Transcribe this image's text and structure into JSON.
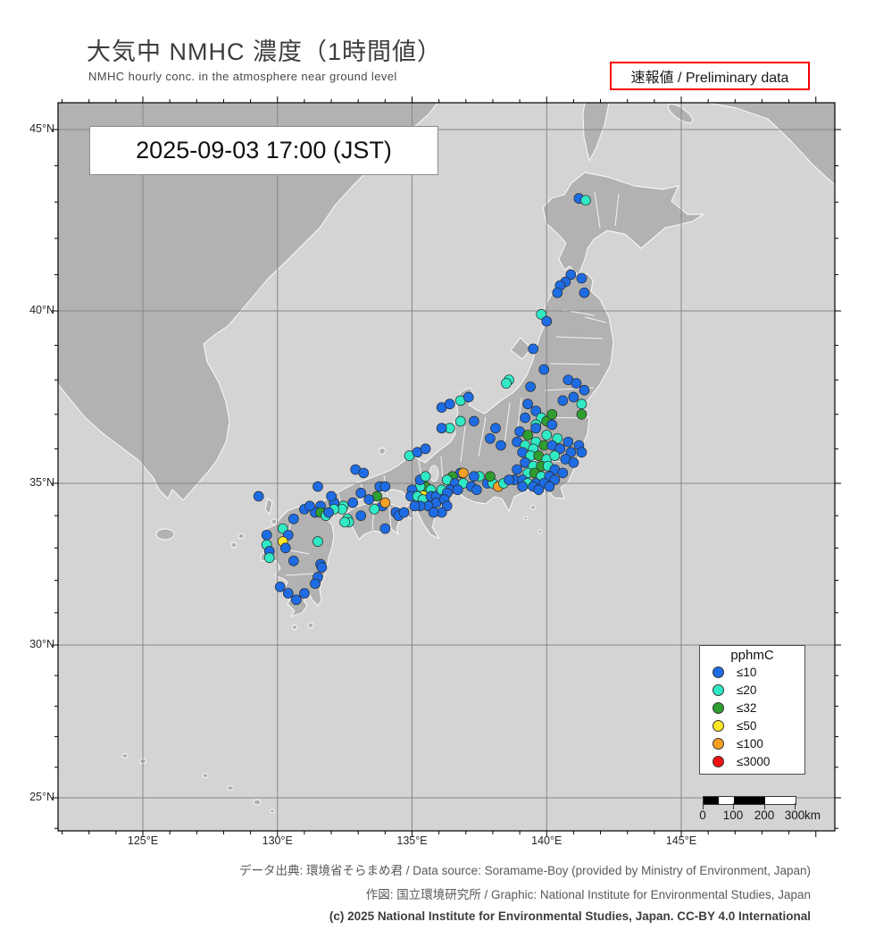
{
  "header": {
    "title": "大気中 NMHC 濃度（1時間値）",
    "subtitle": "NMHC hourly conc. in the atmosphere near ground level",
    "preliminary": "速報値 / Preliminary data"
  },
  "map": {
    "timestamp": "2025-09-03  17:00 (JST)",
    "axes": {
      "x": [
        {
          "label": "125°E",
          "lon": 125
        },
        {
          "label": "130°E",
          "lon": 130
        },
        {
          "label": "135°E",
          "lon": 135
        },
        {
          "label": "140°E",
          "lon": 140
        },
        {
          "label": "145°E",
          "lon": 145
        }
      ],
      "y": [
        {
          "label": "45°N",
          "lat": 45
        },
        {
          "label": "40°N",
          "lat": 40
        },
        {
          "label": "35°N",
          "lat": 35
        },
        {
          "label": "30°N",
          "lat": 30
        },
        {
          "label": "25°N",
          "lat": 25
        }
      ]
    },
    "legend": {
      "title": "pphmC",
      "items": [
        {
          "label": "≤10",
          "color": "#1e6ce4"
        },
        {
          "label": "≤20",
          "color": "#30e9c5"
        },
        {
          "label": "≤32",
          "color": "#2f9e30"
        },
        {
          "label": "≤50",
          "color": "#ffe826"
        },
        {
          "label": "≤100",
          "color": "#f5a023"
        },
        {
          "label": "≤3000",
          "color": "#f01212"
        }
      ]
    },
    "scalebar": {
      "ticks": [
        "0",
        "100",
        "200",
        "300"
      ],
      "unit": "km"
    },
    "colors": {
      "sea": "#d4d4d4",
      "land": "#b2b2b2",
      "grid": "#878787"
    },
    "stations": [
      [
        141.2,
        43.1,
        0
      ],
      [
        141.45,
        43.05,
        1
      ],
      [
        140.9,
        41.0,
        0
      ],
      [
        141.3,
        40.9,
        0
      ],
      [
        140.7,
        40.8,
        0
      ],
      [
        140.5,
        40.7,
        0
      ],
      [
        140.4,
        40.5,
        0
      ],
      [
        141.4,
        40.5,
        0
      ],
      [
        139.8,
        39.9,
        1
      ],
      [
        140.0,
        39.7,
        0
      ],
      [
        139.5,
        38.9,
        0
      ],
      [
        139.9,
        38.3,
        0
      ],
      [
        140.8,
        38.0,
        0
      ],
      [
        141.1,
        37.9,
        0
      ],
      [
        141.4,
        37.7,
        0
      ],
      [
        141.0,
        37.5,
        0
      ],
      [
        140.6,
        37.4,
        0
      ],
      [
        141.3,
        37.3,
        1
      ],
      [
        139.4,
        37.8,
        0
      ],
      [
        138.6,
        38.0,
        1
      ],
      [
        139.3,
        37.3,
        0
      ],
      [
        139.6,
        37.1,
        0
      ],
      [
        139.8,
        36.9,
        1
      ],
      [
        140.0,
        36.8,
        2
      ],
      [
        140.2,
        36.7,
        0
      ],
      [
        139.6,
        36.7,
        1
      ],
      [
        139.2,
        36.9,
        0
      ],
      [
        138.5,
        37.9,
        1
      ],
      [
        141.3,
        37.0,
        2
      ],
      [
        139.0,
        36.5,
        0
      ],
      [
        139.6,
        36.6,
        0
      ],
      [
        140.0,
        36.4,
        1
      ],
      [
        140.4,
        36.3,
        1
      ],
      [
        140.8,
        36.2,
        0
      ],
      [
        141.2,
        36.1,
        0
      ],
      [
        139.6,
        36.2,
        1
      ],
      [
        139.3,
        36.4,
        2
      ],
      [
        138.9,
        36.2,
        0
      ],
      [
        139.2,
        36.1,
        1
      ],
      [
        139.5,
        36.0,
        1
      ],
      [
        139.9,
        36.1,
        2
      ],
      [
        140.2,
        36.1,
        0
      ],
      [
        140.5,
        36.0,
        0
      ],
      [
        140.9,
        35.9,
        0
      ],
      [
        141.3,
        35.9,
        0
      ],
      [
        139.1,
        35.9,
        0
      ],
      [
        139.4,
        35.8,
        1
      ],
      [
        139.7,
        35.8,
        2
      ],
      [
        140.0,
        35.7,
        1
      ],
      [
        140.3,
        35.8,
        1
      ],
      [
        140.7,
        35.7,
        0
      ],
      [
        141.0,
        35.6,
        0
      ],
      [
        139.2,
        35.6,
        0
      ],
      [
        139.5,
        35.5,
        1
      ],
      [
        139.8,
        35.5,
        2
      ],
      [
        140.05,
        35.5,
        1
      ],
      [
        140.3,
        35.4,
        0
      ],
      [
        140.6,
        35.3,
        0
      ],
      [
        138.9,
        35.4,
        0
      ],
      [
        139.3,
        35.3,
        1
      ],
      [
        139.55,
        35.3,
        2
      ],
      [
        139.8,
        35.2,
        1
      ],
      [
        140.1,
        35.2,
        0
      ],
      [
        140.3,
        35.1,
        0
      ],
      [
        138.8,
        35.1,
        0
      ],
      [
        139.1,
        35.1,
        0
      ],
      [
        139.3,
        35.0,
        1
      ],
      [
        139.6,
        35.0,
        0
      ],
      [
        139.9,
        35.0,
        0
      ],
      [
        140.1,
        34.9,
        0
      ],
      [
        139.5,
        34.9,
        0
      ],
      [
        139.1,
        34.9,
        0
      ],
      [
        139.7,
        34.8,
        0
      ],
      [
        140.2,
        37.0,
        2
      ],
      [
        136.1,
        37.2,
        0
      ],
      [
        136.4,
        37.3,
        0
      ],
      [
        136.8,
        37.4,
        1
      ],
      [
        137.1,
        37.5,
        0
      ],
      [
        136.8,
        36.8,
        1
      ],
      [
        136.4,
        36.6,
        1
      ],
      [
        136.1,
        36.6,
        0
      ],
      [
        137.3,
        36.8,
        0
      ],
      [
        138.1,
        36.6,
        0
      ],
      [
        137.9,
        36.3,
        0
      ],
      [
        138.3,
        36.1,
        0
      ],
      [
        136.8,
        35.3,
        0
      ],
      [
        136.9,
        35.3,
        4
      ],
      [
        136.5,
        35.2,
        2
      ],
      [
        136.3,
        35.1,
        1
      ],
      [
        136.6,
        35.0,
        0
      ],
      [
        136.9,
        35.0,
        1
      ],
      [
        137.2,
        34.9,
        0
      ],
      [
        137.4,
        34.8,
        0
      ],
      [
        137.8,
        35.0,
        0
      ],
      [
        138.0,
        35.0,
        1
      ],
      [
        138.2,
        34.9,
        4
      ],
      [
        138.4,
        35.0,
        1
      ],
      [
        138.6,
        35.1,
        0
      ],
      [
        137.9,
        35.2,
        2
      ],
      [
        137.5,
        35.2,
        1
      ],
      [
        137.3,
        35.2,
        0
      ],
      [
        136.4,
        34.8,
        0
      ],
      [
        136.7,
        34.8,
        0
      ],
      [
        135.4,
        34.7,
        3
      ],
      [
        135.5,
        34.9,
        2
      ],
      [
        135.7,
        34.8,
        1
      ],
      [
        135.3,
        34.9,
        1
      ],
      [
        135.0,
        34.8,
        0
      ],
      [
        134.95,
        34.6,
        0
      ],
      [
        135.2,
        34.6,
        1
      ],
      [
        135.4,
        34.5,
        1
      ],
      [
        135.7,
        34.6,
        0
      ],
      [
        135.9,
        34.6,
        0
      ],
      [
        135.9,
        34.4,
        0
      ],
      [
        135.6,
        34.3,
        0
      ],
      [
        135.3,
        34.3,
        0
      ],
      [
        135.1,
        34.3,
        0
      ],
      [
        136.1,
        34.8,
        1
      ],
      [
        136.3,
        34.7,
        0
      ],
      [
        136.2,
        34.5,
        0
      ],
      [
        136.3,
        34.3,
        0
      ],
      [
        136.1,
        34.1,
        0
      ],
      [
        135.8,
        34.1,
        0
      ],
      [
        135.3,
        35.1,
        0
      ],
      [
        135.5,
        35.2,
        1
      ],
      [
        134.9,
        35.8,
        1
      ],
      [
        135.2,
        35.9,
        0
      ],
      [
        135.5,
        36.0,
        0
      ],
      [
        133.8,
        34.9,
        0
      ],
      [
        134.0,
        34.9,
        0
      ],
      [
        133.7,
        34.6,
        2
      ],
      [
        133.9,
        34.3,
        0
      ],
      [
        134.0,
        34.4,
        4
      ],
      [
        134.4,
        34.1,
        0
      ],
      [
        133.4,
        34.5,
        0
      ],
      [
        133.1,
        34.7,
        0
      ],
      [
        132.8,
        34.4,
        0
      ],
      [
        132.45,
        34.3,
        1
      ],
      [
        132.4,
        34.2,
        1
      ],
      [
        132.1,
        34.4,
        0
      ],
      [
        132.0,
        34.6,
        0
      ],
      [
        131.6,
        34.3,
        0
      ],
      [
        132.9,
        35.4,
        0
      ],
      [
        133.2,
        35.3,
        0
      ],
      [
        131.5,
        34.9,
        0
      ],
      [
        131.4,
        34.1,
        0
      ],
      [
        133.1,
        34.0,
        0
      ],
      [
        132.6,
        33.9,
        1
      ],
      [
        132.65,
        33.8,
        1
      ],
      [
        134.0,
        33.6,
        0
      ],
      [
        134.5,
        34.0,
        0
      ],
      [
        134.7,
        34.1,
        0
      ],
      [
        133.6,
        34.2,
        1
      ],
      [
        132.5,
        33.8,
        1
      ],
      [
        131.0,
        34.2,
        0
      ],
      [
        131.2,
        34.3,
        0
      ],
      [
        131.6,
        34.1,
        2
      ],
      [
        131.8,
        34.0,
        1
      ],
      [
        132.1,
        34.2,
        1
      ],
      [
        130.6,
        33.9,
        0
      ],
      [
        130.2,
        33.6,
        1
      ],
      [
        130.4,
        33.4,
        0
      ],
      [
        130.2,
        33.2,
        3
      ],
      [
        129.6,
        33.4,
        0
      ],
      [
        129.6,
        33.1,
        1
      ],
      [
        129.7,
        32.9,
        0
      ],
      [
        129.7,
        32.7,
        1
      ],
      [
        130.3,
        33.0,
        0
      ],
      [
        131.5,
        33.2,
        1
      ],
      [
        130.6,
        32.6,
        0
      ],
      [
        131.6,
        32.5,
        0
      ],
      [
        131.65,
        32.4,
        0
      ],
      [
        131.5,
        32.1,
        0
      ],
      [
        131.4,
        31.9,
        0
      ],
      [
        130.1,
        31.8,
        0
      ],
      [
        130.4,
        31.6,
        0
      ],
      [
        131.0,
        31.6,
        0
      ],
      [
        130.7,
        31.4,
        0
      ],
      [
        131.9,
        34.1,
        0
      ],
      [
        129.3,
        34.6,
        0
      ]
    ]
  },
  "footer": {
    "line1": "データ出典: 環境省そらまめ君 / Data source: Soramame-Boy (provided by Ministry of Environment, Japan)",
    "line2": "作図: 国立環境研究所 / Graphic: National Institute for Environmental Studies, Japan",
    "line3": "(c) 2025 National Institute for Environmental Studies, Japan. CC-BY 4.0 International"
  }
}
